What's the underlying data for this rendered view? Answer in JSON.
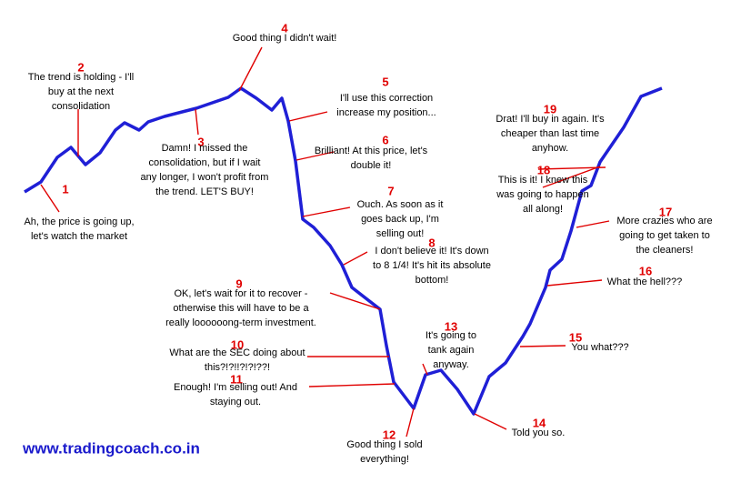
{
  "annotations": [
    {
      "number": 1,
      "lines": [
        "Ah, the price is going up,",
        "let's watch the market"
      ]
    },
    {
      "number": 2,
      "lines": [
        "The trend is holding - I'll",
        "buy at the next",
        "consolidation"
      ]
    },
    {
      "number": 3,
      "lines": [
        "Damn! I missed the",
        "consolidation, but if I wait",
        "any longer, I won't profit from",
        "the trend. LET'S BUY!"
      ]
    },
    {
      "number": 4,
      "lines": [
        "Good thing I didn't wait!"
      ]
    },
    {
      "number": 5,
      "lines": [
        "I'll use this correction",
        "increase my position..."
      ]
    },
    {
      "number": 6,
      "lines": [
        "Brilliant! At this price, let's",
        "double it!"
      ]
    },
    {
      "number": 7,
      "lines": [
        "Ouch. As soon as it",
        "goes back up, I'm",
        "selling out!"
      ]
    },
    {
      "number": 8,
      "lines": [
        "I don't believe it! It's down",
        "to 8 1/4! It's hit its absolute",
        "bottom!"
      ]
    },
    {
      "number": 9,
      "lines": [
        "OK, let's wait for it to recover -",
        "otherwise this will have to be a",
        "really loooooong-term investment."
      ]
    },
    {
      "number": 10,
      "lines": [
        "What are the SEC doing about",
        "this?!?!!?!?!??!"
      ]
    },
    {
      "number": 11,
      "lines": [
        "Enough! I'm selling out! And",
        "staying out."
      ]
    },
    {
      "number": 12,
      "lines": [
        "Good thing I sold",
        "everything!"
      ]
    },
    {
      "number": 13,
      "lines": [
        "It's going to",
        "tank again",
        "anyway."
      ]
    },
    {
      "number": 14,
      "lines": [
        "Told you so."
      ]
    },
    {
      "number": 15,
      "lines": [
        "You what???"
      ]
    },
    {
      "number": 16,
      "lines": [
        "What the hell???"
      ]
    },
    {
      "number": 17,
      "lines": [
        "More crazies who are",
        "going to get taken to",
        "the cleaners!"
      ]
    },
    {
      "number": 18,
      "lines": [
        "This is it! I knew this",
        "was going to happen",
        "all along!"
      ]
    },
    {
      "number": 19,
      "lines": [
        "Drat! I'll buy in again. It's",
        "cheaper than last time",
        "anyhow."
      ]
    }
  ],
  "footer": "www.tradingcoach.co.in"
}
